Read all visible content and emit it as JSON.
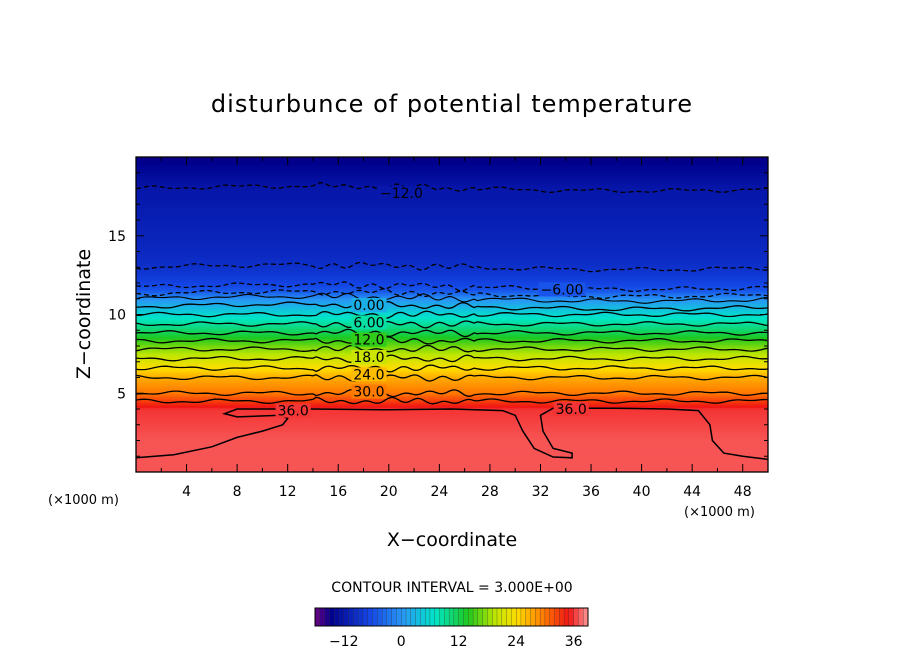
{
  "chart_data": {
    "type": "contour",
    "title": "disturbunce of potential temperature",
    "xlabel": "X−coordinate",
    "ylabel": "Z−coordinate",
    "x_unit": "(×1000 m)",
    "y_unit": "(×1000 m)",
    "xlim": [
      0,
      50
    ],
    "ylim": [
      0,
      20
    ],
    "xticks": [
      4,
      8,
      12,
      16,
      20,
      24,
      28,
      32,
      36,
      40,
      44,
      48
    ],
    "yticks": [
      5,
      10,
      15
    ],
    "contour_interval": "CONTOUR INTERVAL = 3.000E+00",
    "negative_contours_dashed": true,
    "contour_labels": [
      "−12.0",
      "−6.00",
      "0.00",
      "6.00",
      "12.0",
      "18.0",
      "24.0",
      "30.0",
      "36.0",
      "36.0"
    ],
    "field_profile": {
      "z": [
        0,
        2,
        3,
        4,
        5,
        6,
        7,
        8,
        9,
        10,
        10.5,
        11,
        11.5,
        12,
        13,
        14,
        15,
        16,
        17,
        18,
        19,
        20
      ],
      "value": [
        37,
        37,
        36.5,
        36,
        30,
        27,
        22,
        17,
        11,
        6,
        3,
        0,
        -5,
        -7,
        -9,
        -10,
        -10.5,
        -11,
        -11.5,
        -12,
        -13.5,
        -15
      ]
    },
    "colorbar": {
      "min": -18,
      "max": 39,
      "ticks": [
        "−12",
        "0",
        "12",
        "24",
        "36"
      ],
      "tick_values": [
        -12,
        0,
        12,
        24,
        36
      ]
    }
  }
}
